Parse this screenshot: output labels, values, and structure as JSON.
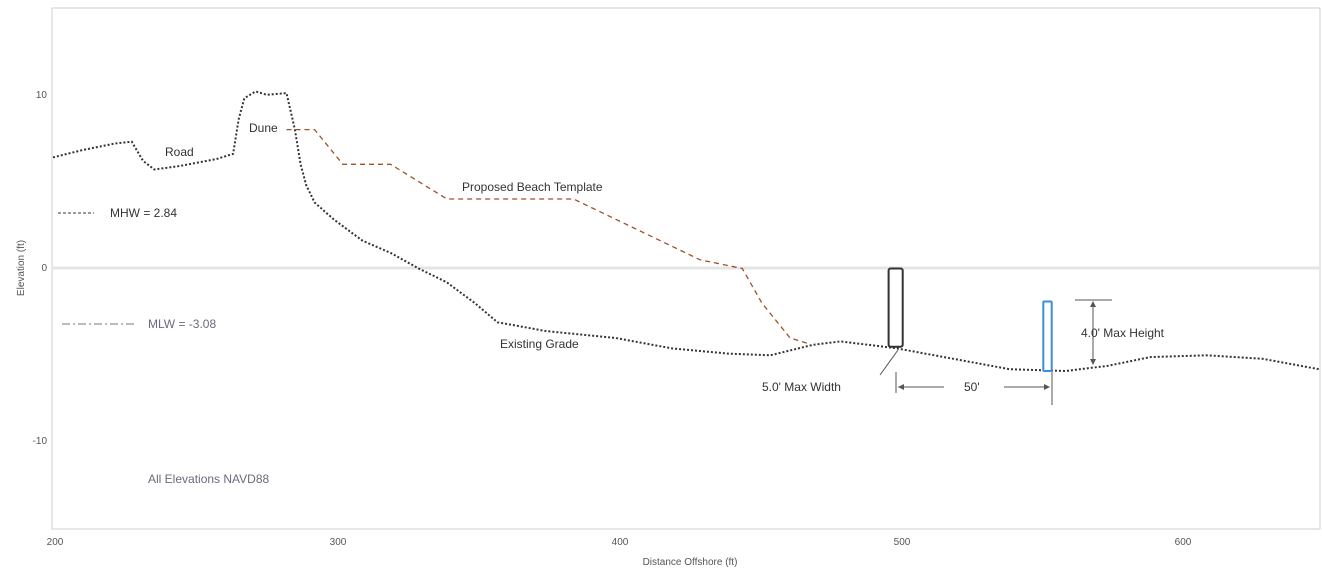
{
  "chart_data": {
    "type": "line",
    "xlabel": "Distance Offshore (ft)",
    "ylabel": "Elevation (ft)",
    "x_ticks": [
      "200",
      "300",
      "400",
      "500",
      "600"
    ],
    "y_ticks": [
      "10",
      "0",
      "-10"
    ],
    "xlim": [
      200,
      650
    ],
    "ylim": [
      -15,
      15
    ],
    "grid": false,
    "series": [
      {
        "name": "Existing Grade",
        "color": "#333333",
        "points": [
          [
            200,
            6.4
          ],
          [
            210,
            6.8
          ],
          [
            222,
            7.2
          ],
          [
            228,
            7.3
          ],
          [
            232,
            6.2
          ],
          [
            236,
            5.7
          ],
          [
            245,
            5.9
          ],
          [
            258,
            6.3
          ],
          [
            264,
            6.6
          ],
          [
            266,
            8.6
          ],
          [
            268,
            9.8
          ],
          [
            272,
            10.2
          ],
          [
            276,
            10.0
          ],
          [
            283,
            10.1
          ],
          [
            286,
            8.0
          ],
          [
            288,
            6.0
          ],
          [
            290,
            4.8
          ],
          [
            293,
            3.8
          ],
          [
            300,
            2.8
          ],
          [
            310,
            1.6
          ],
          [
            320,
            0.9
          ],
          [
            330,
            0.0
          ],
          [
            340,
            -0.8
          ],
          [
            350,
            -2.0
          ],
          [
            358,
            -3.1
          ],
          [
            365,
            -3.3
          ],
          [
            375,
            -3.6
          ],
          [
            400,
            -4.0
          ],
          [
            420,
            -4.6
          ],
          [
            440,
            -4.9
          ],
          [
            455,
            -5.0
          ],
          [
            470,
            -4.4
          ],
          [
            480,
            -4.2
          ],
          [
            490,
            -4.4
          ],
          [
            500,
            -4.6
          ],
          [
            520,
            -5.2
          ],
          [
            540,
            -5.8
          ],
          [
            560,
            -5.9
          ],
          [
            575,
            -5.6
          ],
          [
            590,
            -5.1
          ],
          [
            610,
            -5.0
          ],
          [
            630,
            -5.2
          ],
          [
            650,
            -5.8
          ]
        ]
      },
      {
        "name": "Proposed Beach Template",
        "color": "#a0502a",
        "points": [
          [
            283,
            8.0
          ],
          [
            293,
            8.0
          ],
          [
            303,
            6.0
          ],
          [
            320,
            6.0
          ],
          [
            340,
            4.0
          ],
          [
            385,
            4.0
          ],
          [
            430,
            0.5
          ],
          [
            445,
            0.0
          ],
          [
            452,
            -2.0
          ],
          [
            462,
            -4.0
          ],
          [
            468,
            -4.3
          ]
        ]
      }
    ],
    "water_levels": [
      {
        "label": "MHW = 2.84",
        "value": 2.84
      },
      {
        "label": "MLW = -3.08",
        "value": -3.08
      }
    ],
    "structures": [
      {
        "x_start": 497,
        "x_end": 502,
        "base": -4.5,
        "top": 0
      },
      {
        "x_start": 552,
        "x_end": 555,
        "base": -5.9,
        "top": -1.9
      }
    ],
    "annotations": {
      "road": "Road",
      "dune": "Dune",
      "template": "Proposed Beach Template",
      "existing": "Existing Grade",
      "max_width": "5.0' Max Width",
      "spacing": "50'",
      "max_height": "4.0' Max Height",
      "datum": "All Elevations NAVD88"
    }
  }
}
